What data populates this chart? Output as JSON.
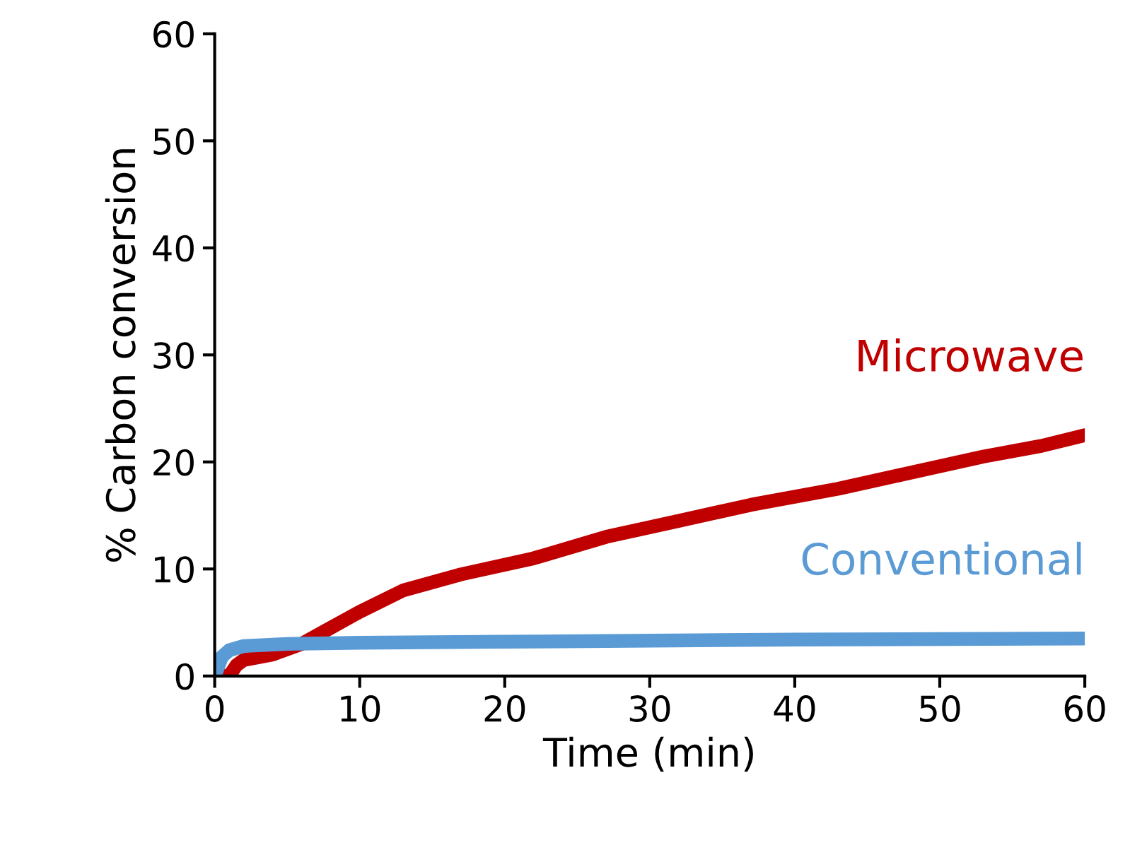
{
  "chart_data": {
    "type": "line",
    "xlabel": "Time (min)",
    "ylabel": "% Carbon conversion",
    "xlim": [
      0,
      60
    ],
    "ylim": [
      0,
      60
    ],
    "xticks": [
      0,
      10,
      20,
      30,
      40,
      50,
      60
    ],
    "yticks": [
      0,
      10,
      20,
      30,
      40,
      50,
      60
    ],
    "grid": false,
    "legend": false,
    "marker": "none",
    "line_style": "solid",
    "series": [
      {
        "name": "Microwave",
        "color": "#c00000",
        "x": [
          0,
          1,
          1.5,
          2,
          4,
          6,
          8,
          10,
          13,
          17,
          22,
          27,
          32,
          37,
          43,
          48,
          53,
          57,
          60
        ],
        "values": [
          0,
          0,
          1,
          1.5,
          2,
          3,
          4.5,
          6,
          8,
          9.5,
          11,
          13,
          14.5,
          16,
          17.5,
          19,
          20.5,
          21.5,
          22.5
        ]
      },
      {
        "name": "Conventional",
        "color": "#5b9bd5",
        "x": [
          0,
          0.5,
          1,
          2,
          5,
          10,
          20,
          40,
          60
        ],
        "values": [
          0,
          1.8,
          2.4,
          2.8,
          3,
          3.1,
          3.2,
          3.4,
          3.5
        ]
      }
    ]
  }
}
